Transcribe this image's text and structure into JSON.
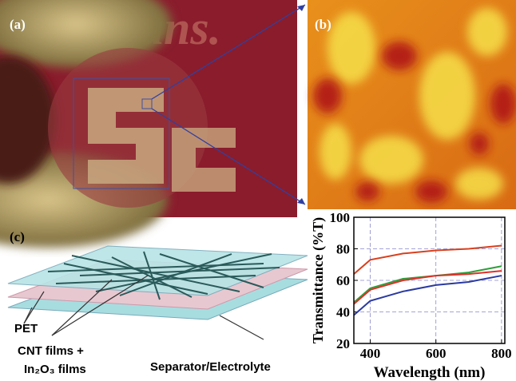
{
  "panels": {
    "a": "(a)",
    "b": "(b)",
    "c": "(c)"
  },
  "schematic": {
    "pet": "PET",
    "cnt": "CNT films +",
    "in2o3": "In₂O₃ films",
    "separator": "Separator/Electrolyte"
  },
  "chart_data": {
    "type": "line",
    "x_label": "Wavelength (nm)",
    "y_label": "Transmittance (%T)",
    "x": [
      350,
      400,
      500,
      600,
      700,
      800
    ],
    "series": [
      {
        "color": "#d8401e",
        "values": [
          64,
          73,
          77,
          79,
          80,
          82
        ]
      },
      {
        "color": "#2e9e3a",
        "values": [
          46,
          55,
          61,
          63,
          65,
          69
        ]
      },
      {
        "color": "#e0302a",
        "values": [
          45,
          54,
          60,
          63,
          64,
          66
        ]
      },
      {
        "color": "#2a3aa0",
        "values": [
          38,
          47,
          53,
          57,
          59,
          63
        ]
      }
    ],
    "xlim": [
      350,
      810
    ],
    "ylim": [
      20,
      100
    ],
    "xticks": [
      400,
      600,
      800
    ],
    "yticks": [
      20,
      40,
      60,
      80,
      100
    ],
    "grid": true
  }
}
